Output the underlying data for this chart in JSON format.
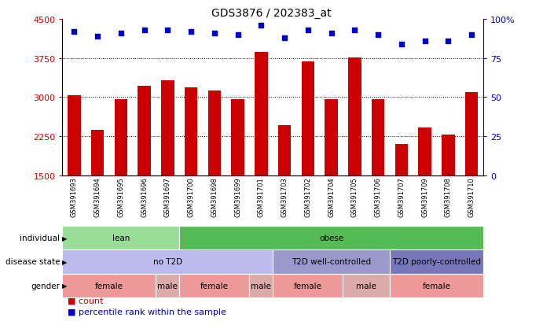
{
  "title": "GDS3876 / 202383_at",
  "samples": [
    "GSM391693",
    "GSM391694",
    "GSM391695",
    "GSM391696",
    "GSM391697",
    "GSM391700",
    "GSM391698",
    "GSM391699",
    "GSM391701",
    "GSM391703",
    "GSM391702",
    "GSM391704",
    "GSM391705",
    "GSM391706",
    "GSM391707",
    "GSM391709",
    "GSM391708",
    "GSM391710"
  ],
  "counts": [
    3040,
    2380,
    2960,
    3220,
    3320,
    3190,
    3120,
    2960,
    3870,
    2470,
    3680,
    2960,
    3760,
    2960,
    2100,
    2420,
    2280,
    3100
  ],
  "percentiles": [
    92,
    89,
    91,
    93,
    93,
    92,
    91,
    90,
    96,
    88,
    93,
    91,
    93,
    90,
    84,
    86,
    86,
    90
  ],
  "ylim_left": [
    1500,
    4500
  ],
  "ylim_right": [
    0,
    100
  ],
  "yticks_left": [
    1500,
    2250,
    3000,
    3750,
    4500
  ],
  "yticks_right": [
    0,
    25,
    50,
    75,
    100
  ],
  "bar_color": "#CC0000",
  "dot_color": "#0000CC",
  "individual_groups": [
    {
      "label": "lean",
      "start": 0,
      "end": 5,
      "color": "#99DD99"
    },
    {
      "label": "obese",
      "start": 5,
      "end": 18,
      "color": "#55BB55"
    }
  ],
  "disease_groups": [
    {
      "label": "no T2D",
      "start": 0,
      "end": 9,
      "color": "#BBBBEE"
    },
    {
      "label": "T2D well-controlled",
      "start": 9,
      "end": 14,
      "color": "#9999CC"
    },
    {
      "label": "T2D poorly-controlled",
      "start": 14,
      "end": 18,
      "color": "#7777BB"
    }
  ],
  "gender_groups": [
    {
      "label": "female",
      "start": 0,
      "end": 4,
      "color": "#EE9999"
    },
    {
      "label": "male",
      "start": 4,
      "end": 5,
      "color": "#DDAAAA"
    },
    {
      "label": "female",
      "start": 5,
      "end": 8,
      "color": "#EE9999"
    },
    {
      "label": "male",
      "start": 8,
      "end": 9,
      "color": "#DDAAAA"
    },
    {
      "label": "female",
      "start": 9,
      "end": 12,
      "color": "#EE9999"
    },
    {
      "label": "male",
      "start": 12,
      "end": 14,
      "color": "#DDAAAA"
    },
    {
      "label": "female",
      "start": 14,
      "end": 18,
      "color": "#EE9999"
    }
  ],
  "background_color": "#FFFFFF",
  "label_color_left": "#CC0000",
  "label_color_right": "#0000CC",
  "grid_yticks": [
    2250,
    3000,
    3750
  ]
}
